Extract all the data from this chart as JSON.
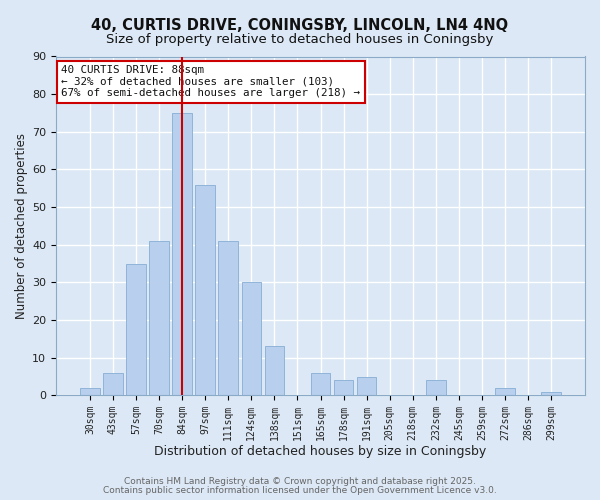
{
  "title": "40, CURTIS DRIVE, CONINGSBY, LINCOLN, LN4 4NQ",
  "subtitle": "Size of property relative to detached houses in Coningsby",
  "xlabel": "Distribution of detached houses by size in Coningsby",
  "ylabel": "Number of detached properties",
  "bar_color": "#b8d0ee",
  "bar_edge_color": "#90b4d8",
  "background_color": "#dce8f5",
  "grid_color": "white",
  "categories": [
    "30sqm",
    "43sqm",
    "57sqm",
    "70sqm",
    "84sqm",
    "97sqm",
    "111sqm",
    "124sqm",
    "138sqm",
    "151sqm",
    "165sqm",
    "178sqm",
    "191sqm",
    "205sqm",
    "218sqm",
    "232sqm",
    "245sqm",
    "259sqm",
    "272sqm",
    "286sqm",
    "299sqm"
  ],
  "values": [
    2,
    6,
    35,
    41,
    75,
    56,
    41,
    30,
    13,
    0,
    6,
    4,
    5,
    0,
    0,
    4,
    0,
    0,
    2,
    0,
    1
  ],
  "vline_x_index": 4,
  "vline_color": "#cc0000",
  "ylim": [
    0,
    90
  ],
  "yticks": [
    0,
    10,
    20,
    30,
    40,
    50,
    60,
    70,
    80,
    90
  ],
  "annotation_line1": "40 CURTIS DRIVE: 88sqm",
  "annotation_line2": "← 32% of detached houses are smaller (103)",
  "annotation_line3": "67% of semi-detached houses are larger (218) →",
  "annotation_box_color": "white",
  "annotation_box_edge_color": "#cc0000",
  "footer_line1": "Contains HM Land Registry data © Crown copyright and database right 2025.",
  "footer_line2": "Contains public sector information licensed under the Open Government Licence v3.0.",
  "title_fontsize": 10.5,
  "subtitle_fontsize": 9.5,
  "footer_fontsize": 6.5,
  "bar_width": 0.85
}
